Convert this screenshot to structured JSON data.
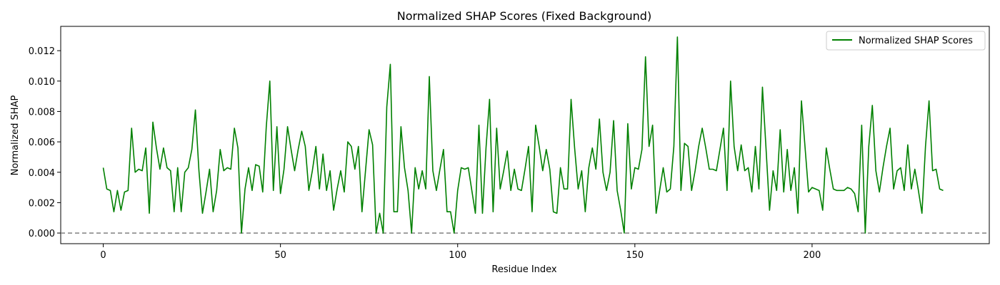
{
  "chart_data": {
    "type": "line",
    "title": "Normalized SHAP Scores (Fixed Background)",
    "xlabel": "Residue Index",
    "ylabel": "Normalized SHAP",
    "xlim": [
      -12,
      250
    ],
    "ylim": [
      -0.0007,
      0.0136
    ],
    "xticks": [
      0,
      50,
      100,
      150,
      200
    ],
    "yticks": [
      0.0,
      0.002,
      0.004,
      0.006,
      0.008,
      0.01,
      0.012
    ],
    "ytick_labels": [
      "0.000",
      "0.002",
      "0.004",
      "0.006",
      "0.008",
      "0.010",
      "0.012"
    ],
    "legend": "upper-right",
    "reference_line": {
      "y": 0.0,
      "style": "dashed",
      "color": "#808080"
    },
    "series": [
      {
        "name": "Normalized SHAP Scores",
        "color": "#008000",
        "x": [
          0,
          1,
          2,
          3,
          4,
          5,
          6,
          7,
          8,
          9,
          10,
          11,
          12,
          13,
          14,
          15,
          16,
          17,
          18,
          19,
          20,
          21,
          22,
          23,
          24,
          25,
          26,
          27,
          28,
          29,
          30,
          31,
          32,
          33,
          34,
          35,
          36,
          37,
          38,
          39,
          40,
          41,
          42,
          43,
          44,
          45,
          46,
          47,
          48,
          49,
          50,
          51,
          52,
          53,
          54,
          55,
          56,
          57,
          58,
          59,
          60,
          61,
          62,
          63,
          64,
          65,
          66,
          67,
          68,
          69,
          70,
          71,
          72,
          73,
          74,
          75,
          76,
          77,
          78,
          79,
          80,
          81,
          82,
          83,
          84,
          85,
          86,
          87,
          88,
          89,
          90,
          91,
          92,
          93,
          94,
          95,
          96,
          97,
          98,
          99,
          100,
          101,
          102,
          103,
          104,
          105,
          106,
          107,
          108,
          109,
          110,
          111,
          112,
          113,
          114,
          115,
          116,
          117,
          118,
          119,
          120,
          121,
          122,
          123,
          124,
          125,
          126,
          127,
          128,
          129,
          130,
          131,
          132,
          133,
          134,
          135,
          136,
          137,
          138,
          139,
          140,
          141,
          142,
          143,
          144,
          145,
          146,
          147,
          148,
          149,
          150,
          151,
          152,
          153,
          154,
          155,
          156,
          157,
          158,
          159,
          160,
          161,
          162,
          163,
          164,
          165,
          166,
          167,
          168,
          169,
          170,
          171,
          172,
          173,
          174,
          175,
          176,
          177,
          178,
          179,
          180,
          181,
          182,
          183,
          184,
          185,
          186,
          187,
          188,
          189,
          190,
          191,
          192,
          193,
          194,
          195,
          196,
          197,
          198,
          199,
          200,
          201,
          202,
          203,
          204,
          205,
          206,
          207,
          208,
          209,
          210,
          211,
          212,
          213,
          214,
          215,
          216,
          217,
          218,
          219,
          220,
          221,
          222,
          223,
          224,
          225,
          226,
          227,
          228,
          229,
          230,
          231,
          232,
          233,
          234,
          235,
          236,
          237
        ],
        "values": [
          0.0043,
          0.0029,
          0.0028,
          0.0014,
          0.0028,
          0.0015,
          0.0027,
          0.0028,
          0.0069,
          0.004,
          0.0042,
          0.0041,
          0.0056,
          0.0013,
          0.0073,
          0.0056,
          0.0042,
          0.0056,
          0.0043,
          0.0041,
          0.0014,
          0.0043,
          0.0014,
          0.004,
          0.0043,
          0.0055,
          0.0081,
          0.0041,
          0.0013,
          0.0027,
          0.0042,
          0.0014,
          0.0028,
          0.0055,
          0.0041,
          0.0043,
          0.0042,
          0.0069,
          0.0056,
          0.0,
          0.0029,
          0.0043,
          0.0028,
          0.0045,
          0.0044,
          0.0027,
          0.007,
          0.01,
          0.0028,
          0.007,
          0.0026,
          0.0042,
          0.007,
          0.0055,
          0.0041,
          0.0055,
          0.0067,
          0.0057,
          0.0028,
          0.0041,
          0.0057,
          0.0029,
          0.0052,
          0.0028,
          0.0041,
          0.0015,
          0.0029,
          0.0041,
          0.0027,
          0.006,
          0.0057,
          0.0042,
          0.0057,
          0.0014,
          0.0041,
          0.0068,
          0.0058,
          0.0,
          0.0013,
          0.0,
          0.0083,
          0.0111,
          0.0014,
          0.0014,
          0.007,
          0.0043,
          0.0028,
          0.0,
          0.0043,
          0.0029,
          0.0041,
          0.0029,
          0.0103,
          0.0041,
          0.0028,
          0.0042,
          0.0055,
          0.0014,
          0.0014,
          0.0,
          0.0028,
          0.0043,
          0.0042,
          0.0043,
          0.0028,
          0.0013,
          0.0071,
          0.0013,
          0.0056,
          0.0088,
          0.0014,
          0.0069,
          0.0029,
          0.0041,
          0.0054,
          0.0028,
          0.0042,
          0.0029,
          0.0028,
          0.0042,
          0.0057,
          0.0014,
          0.0071,
          0.0057,
          0.0041,
          0.0055,
          0.0042,
          0.0014,
          0.0013,
          0.0043,
          0.0029,
          0.0029,
          0.0088,
          0.0056,
          0.0029,
          0.0041,
          0.0014,
          0.0043,
          0.0056,
          0.0042,
          0.0075,
          0.004,
          0.0028,
          0.004,
          0.0074,
          0.0028,
          0.0015,
          0.0,
          0.0072,
          0.0029,
          0.0043,
          0.0042,
          0.0055,
          0.0116,
          0.0057,
          0.0071,
          0.0013,
          0.0028,
          0.0043,
          0.0027,
          0.0029,
          0.0057,
          0.0129,
          0.0028,
          0.0059,
          0.0057,
          0.0028,
          0.0041,
          0.0057,
          0.0069,
          0.0056,
          0.0042,
          0.0042,
          0.0041,
          0.0055,
          0.0069,
          0.0028,
          0.01,
          0.0057,
          0.0041,
          0.0058,
          0.0041,
          0.0043,
          0.0027,
          0.0057,
          0.0029,
          0.0096,
          0.0056,
          0.0015,
          0.0041,
          0.0028,
          0.0068,
          0.0027,
          0.0055,
          0.0028,
          0.0043,
          0.0013,
          0.0087,
          0.0057,
          0.0027,
          0.003,
          0.0029,
          0.0028,
          0.0015,
          0.0056,
          0.0042,
          0.0029,
          0.0028,
          0.0028,
          0.0028,
          0.003,
          0.0029,
          0.0026,
          0.0014,
          0.0071,
          0.0,
          0.0057,
          0.0084,
          0.0041,
          0.0027,
          0.0043,
          0.0057,
          0.0069,
          0.0029,
          0.0041,
          0.0043,
          0.0028,
          0.0058,
          0.0029,
          0.0042,
          0.0028,
          0.0013,
          0.0057,
          0.0087,
          0.0041,
          0.0042,
          0.0029,
          0.0028
        ]
      }
    ]
  }
}
